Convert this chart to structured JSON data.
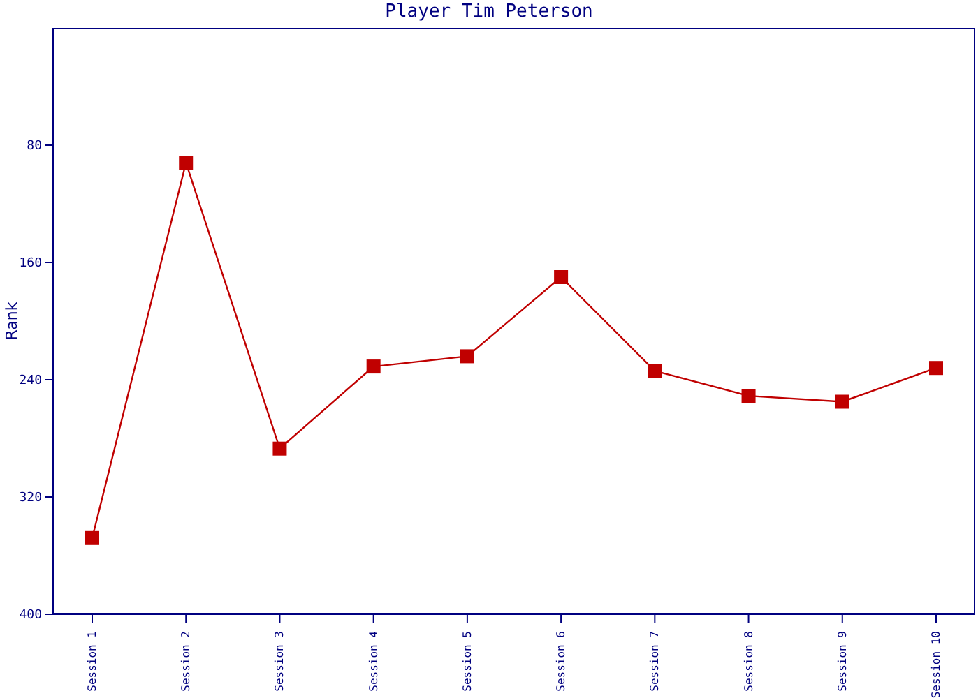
{
  "chart_data": {
    "type": "line",
    "title": "Player Tim Peterson",
    "ylabel": "Rank",
    "categories": [
      "Session 1",
      "Session 2",
      "Session 3",
      "Session 4",
      "Session 5",
      "Session 6",
      "Session 7",
      "Session 8",
      "Session 9",
      "Session 10"
    ],
    "series": [
      {
        "color": "#c00000",
        "values": [
          348,
          92,
          287,
          231,
          224,
          170,
          234,
          251,
          255,
          232
        ]
      }
    ],
    "ylim": [
      400,
      0
    ],
    "yticks": [
      80,
      160,
      240,
      320,
      400
    ],
    "marker": "square",
    "line_style": "solid"
  }
}
